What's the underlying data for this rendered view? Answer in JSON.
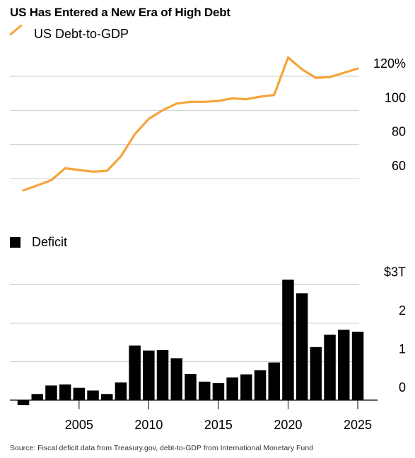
{
  "title": "US Has Entered a New Era of High Debt",
  "source": "Source: Fiscal deficit data from Treasury.gov, debt-to-GDP from International Monetary Fund",
  "colors": {
    "line": "#f5a43a",
    "bar": "#000000",
    "grid": "#cccccc"
  },
  "chart_data": [
    {
      "type": "line",
      "series": [
        {
          "name": "US Debt-to-GDP",
          "x": [
            2001,
            2002,
            2003,
            2004,
            2005,
            2006,
            2007,
            2008,
            2009,
            2010,
            2011,
            2012,
            2013,
            2014,
            2015,
            2016,
            2017,
            2018,
            2019,
            2020,
            2021,
            2022,
            2023,
            2024,
            2025
          ],
          "values": [
            53,
            56,
            59,
            66,
            65,
            64,
            64.5,
            73,
            86,
            95,
            100,
            104,
            105,
            105,
            105.5,
            107,
            106.5,
            108,
            109,
            131,
            124,
            119,
            119.5,
            122,
            124.5
          ]
        }
      ],
      "y_ticks": [
        "120%",
        "100",
        "80",
        "60"
      ],
      "y_tick_values": [
        120,
        100,
        80,
        60
      ],
      "ylim": [
        45,
        135
      ],
      "grid": true
    },
    {
      "type": "bar",
      "series": [
        {
          "name": "Deficit",
          "x": [
            2001,
            2002,
            2003,
            2004,
            2005,
            2006,
            2007,
            2008,
            2009,
            2010,
            2011,
            2012,
            2013,
            2014,
            2015,
            2016,
            2017,
            2018,
            2019,
            2020,
            2021,
            2022,
            2023,
            2024,
            2025
          ],
          "values": [
            -0.13,
            0.16,
            0.38,
            0.41,
            0.32,
            0.25,
            0.16,
            0.46,
            1.42,
            1.29,
            1.3,
            1.09,
            0.68,
            0.48,
            0.44,
            0.59,
            0.67,
            0.78,
            0.98,
            3.13,
            2.78,
            1.38,
            1.7,
            1.83,
            1.78
          ]
        }
      ],
      "y_ticks": [
        "$3T",
        "2",
        "1",
        "0"
      ],
      "y_tick_values": [
        3,
        2,
        1,
        0
      ],
      "x_ticks": [
        "2005",
        "2010",
        "2015",
        "2020",
        "2025"
      ],
      "x_tick_values": [
        2005,
        2010,
        2015,
        2020,
        2025
      ],
      "ylim": [
        -0.2,
        3.3
      ],
      "grid": true
    }
  ]
}
